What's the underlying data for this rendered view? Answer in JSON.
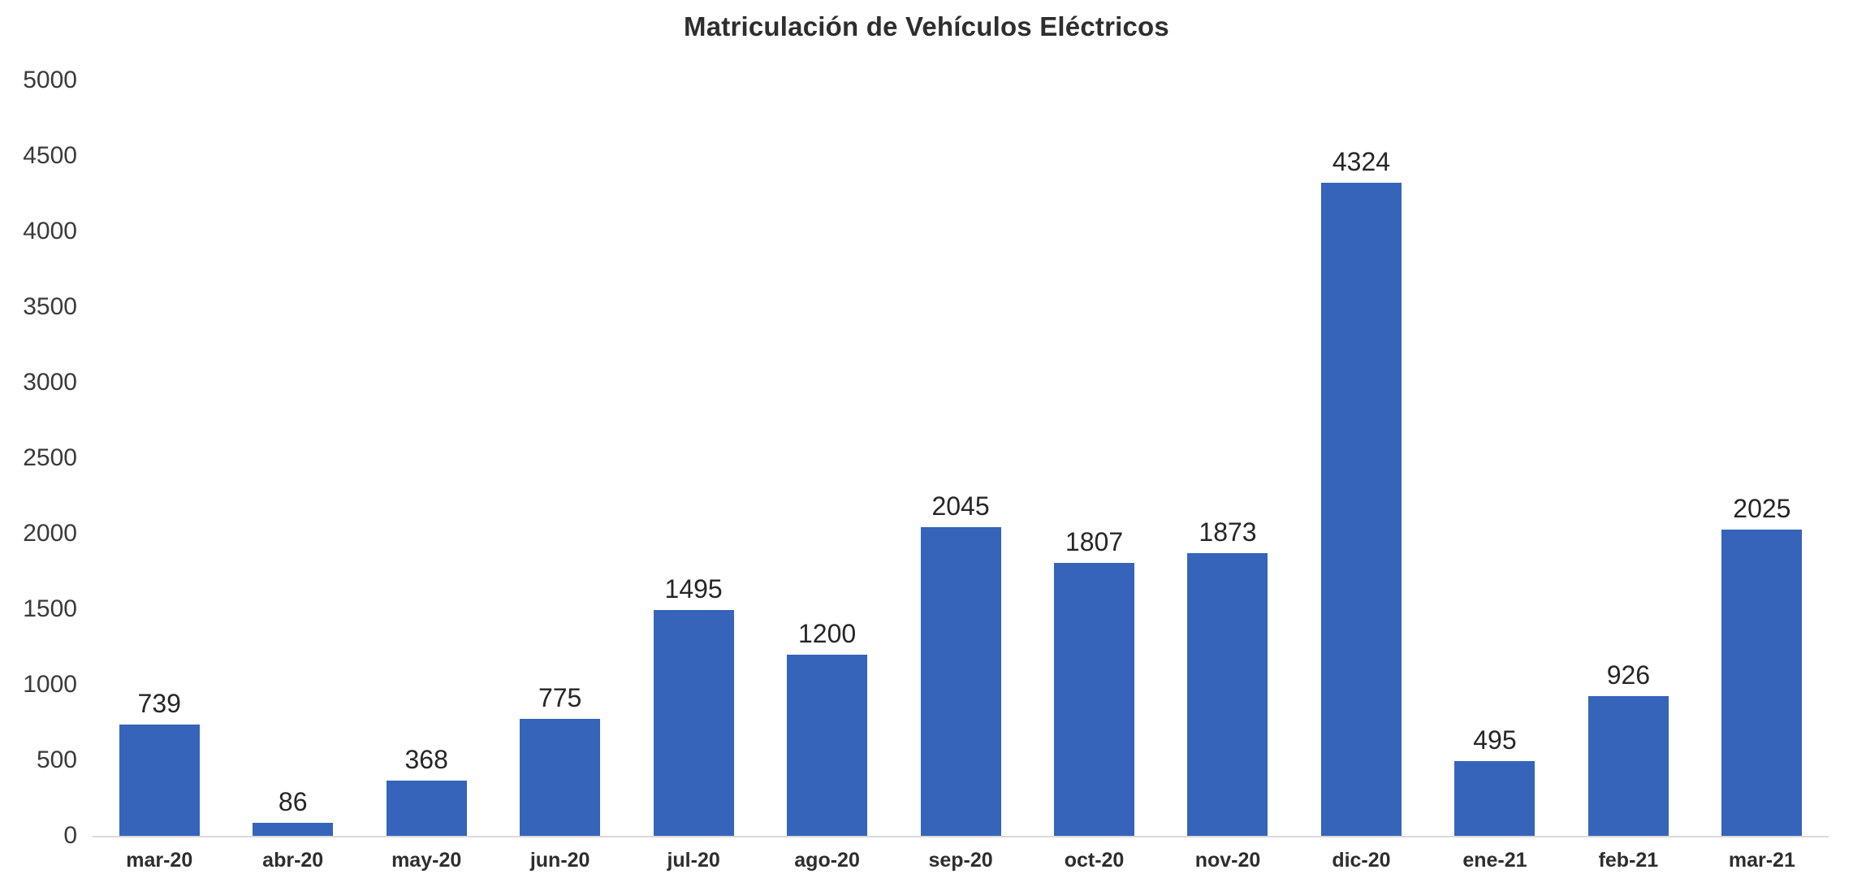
{
  "title": "Matriculación de Vehículos Eléctricos",
  "colors": {
    "bar": "#3564ba",
    "axis_line": "#d9d9d9",
    "title_text": "#2e2e2e",
    "tick_text": "#3a3a3a",
    "value_label_text": "#262626"
  },
  "chart_data": {
    "type": "bar",
    "title": "Matriculación de Vehículos Eléctricos",
    "categories": [
      "mar-20",
      "abr-20",
      "may-20",
      "jun-20",
      "jul-20",
      "ago-20",
      "sep-20",
      "oct-20",
      "nov-20",
      "dic-20",
      "ene-21",
      "feb-21",
      "mar-21"
    ],
    "values": [
      739,
      86,
      368,
      775,
      1495,
      1200,
      2045,
      1807,
      1873,
      4324,
      495,
      926,
      2025
    ],
    "xlabel": "",
    "ylabel": "",
    "ylim": [
      0,
      5000
    ],
    "yticks": [
      0,
      500,
      1000,
      1500,
      2000,
      2500,
      3000,
      3500,
      4000,
      4500,
      5000
    ],
    "grid": false,
    "legend": false,
    "data_labels": true
  }
}
